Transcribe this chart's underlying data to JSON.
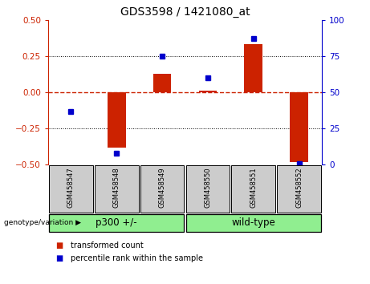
{
  "title": "GDS3598 / 1421080_at",
  "samples": [
    "GSM458547",
    "GSM458548",
    "GSM458549",
    "GSM458550",
    "GSM458551",
    "GSM458552"
  ],
  "transformed_count": [
    0.0,
    -0.38,
    0.13,
    0.01,
    0.33,
    -0.48
  ],
  "percentile_rank": [
    37,
    8,
    75,
    60,
    87,
    1
  ],
  "group_info": [
    {
      "label": "p300 +/-",
      "start": 0,
      "end": 2,
      "color": "#90EE90"
    },
    {
      "label": "wild-type",
      "start": 3,
      "end": 5,
      "color": "#90EE90"
    }
  ],
  "ylim_left": [
    -0.5,
    0.5
  ],
  "ylim_right": [
    0,
    100
  ],
  "yticks_left": [
    -0.5,
    -0.25,
    0,
    0.25,
    0.5
  ],
  "yticks_right": [
    0,
    25,
    50,
    75,
    100
  ],
  "bar_color": "#CC2200",
  "dot_color": "#0000CC",
  "hline_color": "#CC2200",
  "grid_color": "#000000",
  "title_fontsize": 10,
  "tick_fontsize": 7.5,
  "background_color": "#ffffff",
  "sample_box_color": "#cccccc",
  "genotype_label": "genotype/variation",
  "legend_items": [
    "transformed count",
    "percentile rank within the sample"
  ],
  "bar_width": 0.4
}
